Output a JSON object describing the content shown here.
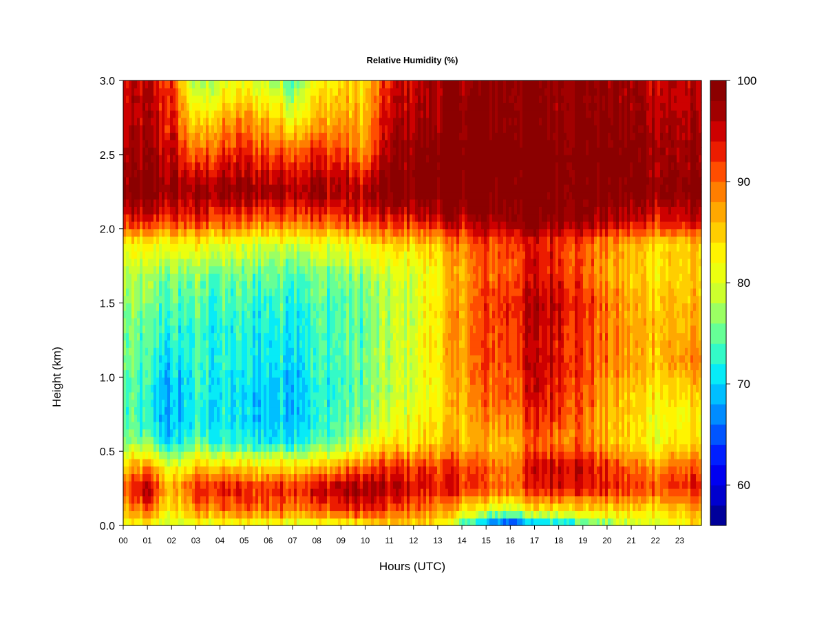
{
  "chart_data": {
    "type": "heatmap",
    "title": "Relative Humidity (%)",
    "xlabel": "Hours (UTC)",
    "ylabel": "Height (km)",
    "x_ticks": [
      "00",
      "01",
      "02",
      "03",
      "04",
      "05",
      "06",
      "07",
      "08",
      "09",
      "10",
      "11",
      "12",
      "13",
      "14",
      "15",
      "16",
      "17",
      "18",
      "19",
      "20",
      "21",
      "22",
      "23"
    ],
    "y_ticks": [
      "0.0",
      "0.5",
      "1.0",
      "1.5",
      "2.0",
      "2.5",
      "3.0"
    ],
    "xlim": [
      0,
      23.9
    ],
    "ylim": [
      0,
      3.0
    ],
    "colorbar": {
      "ticks": [
        "60",
        "70",
        "80",
        "90",
        "100"
      ],
      "range": [
        56,
        100
      ],
      "levels": 22
    },
    "grid": false,
    "heights_km": [
      0.0,
      0.1,
      0.25,
      0.4,
      0.55,
      0.7,
      0.9,
      1.1,
      1.3,
      1.5,
      1.7,
      1.9,
      2.05,
      2.25,
      2.5,
      2.75,
      3.0
    ],
    "hours": [
      0,
      1,
      2,
      3,
      4,
      5,
      6,
      7,
      8,
      9,
      10,
      11,
      12,
      13,
      14,
      15,
      16,
      17,
      18,
      19,
      20,
      21,
      22,
      23,
      23.9
    ],
    "rh_grid": [
      [
        80,
        80,
        79,
        80,
        80,
        80,
        80,
        80,
        80,
        80,
        82,
        84,
        84,
        84,
        74,
        64,
        62,
        66,
        70,
        72,
        76,
        78,
        80,
        82,
        82
      ],
      [
        86,
        90,
        82,
        88,
        89,
        90,
        90,
        90,
        90,
        92,
        93,
        91,
        90,
        88,
        84,
        80,
        79,
        82,
        84,
        84,
        84,
        84,
        84,
        85,
        86
      ],
      [
        90,
        96,
        86,
        93,
        94,
        93,
        93,
        94,
        95,
        97,
        97,
        96,
        95,
        94,
        93,
        91,
        90,
        93,
        95,
        94,
        93,
        92,
        92,
        93,
        93
      ],
      [
        84,
        88,
        80,
        85,
        85,
        84,
        84,
        85,
        85,
        88,
        90,
        92,
        92,
        92,
        92,
        90,
        89,
        94,
        96,
        95,
        92,
        90,
        88,
        90,
        90
      ],
      [
        76,
        76,
        70,
        75,
        73,
        72,
        72,
        72,
        74,
        76,
        80,
        84,
        84,
        86,
        86,
        86,
        86,
        90,
        90,
        90,
        86,
        84,
        82,
        84,
        84
      ],
      [
        74,
        72,
        68,
        72,
        71,
        70,
        70,
        70,
        72,
        74,
        76,
        80,
        82,
        84,
        86,
        88,
        89,
        92,
        92,
        90,
        86,
        84,
        82,
        82,
        82
      ],
      [
        74,
        72,
        68,
        72,
        71,
        70,
        70,
        70,
        72,
        73,
        75,
        78,
        80,
        83,
        87,
        90,
        91,
        94,
        94,
        91,
        87,
        85,
        84,
        84,
        84
      ],
      [
        75,
        73,
        70,
        73,
        72,
        71,
        71,
        71,
        73,
        74,
        75,
        78,
        80,
        84,
        88,
        91,
        92,
        95,
        95,
        92,
        89,
        87,
        86,
        88,
        88
      ],
      [
        76,
        74,
        72,
        73,
        72,
        72,
        72,
        72,
        73,
        74,
        75,
        78,
        80,
        84,
        88,
        91,
        92,
        95,
        95,
        92,
        89,
        87,
        86,
        86,
        86
      ],
      [
        76,
        75,
        74,
        74,
        73,
        73,
        73,
        73,
        74,
        74,
        75,
        78,
        80,
        84,
        88,
        92,
        93,
        96,
        96,
        93,
        89,
        87,
        86,
        86,
        86
      ],
      [
        78,
        77,
        76,
        76,
        75,
        75,
        75,
        75,
        76,
        76,
        77,
        79,
        80,
        83,
        87,
        90,
        91,
        94,
        94,
        91,
        87,
        85,
        84,
        84,
        84
      ],
      [
        82,
        82,
        82,
        82,
        81,
        80,
        80,
        80,
        81,
        81,
        82,
        84,
        84,
        86,
        89,
        91,
        92,
        93,
        93,
        91,
        88,
        86,
        85,
        85,
        85
      ],
      [
        93,
        93,
        92,
        92,
        91,
        90,
        90,
        91,
        91,
        91,
        92,
        93,
        94,
        95,
        96,
        97,
        98,
        99,
        99,
        98,
        96,
        95,
        94,
        94,
        94
      ],
      [
        98,
        99,
        98,
        98,
        98,
        98,
        98,
        98,
        98,
        97,
        97,
        99,
        100,
        100,
        100,
        100,
        100,
        100,
        100,
        100,
        100,
        99,
        99,
        99,
        99
      ],
      [
        96,
        97,
        95,
        90,
        92,
        93,
        92,
        92,
        93,
        92,
        88,
        97,
        99,
        100,
        100,
        100,
        100,
        100,
        100,
        100,
        100,
        99,
        98,
        97,
        97
      ],
      [
        95,
        96,
        93,
        83,
        86,
        88,
        86,
        82,
        86,
        87,
        86,
        95,
        97,
        98,
        99,
        99,
        99,
        99,
        99,
        99,
        99,
        98,
        97,
        96,
        96
      ],
      [
        94,
        95,
        92,
        76,
        79,
        81,
        78,
        75,
        82,
        84,
        84,
        93,
        96,
        97,
        98,
        98,
        99,
        99,
        99,
        99,
        98,
        97,
        96,
        95,
        95
      ]
    ]
  },
  "colors": {
    "jet": [
      "#000080",
      "#0000cd",
      "#0000ff",
      "#0050ff",
      "#00a0ff",
      "#00e8ff",
      "#40ffb8",
      "#90ff70",
      "#d8ff20",
      "#ffff00",
      "#ffc800",
      "#ff9000",
      "#ff4800",
      "#e00000",
      "#a00000",
      "#800000"
    ]
  }
}
